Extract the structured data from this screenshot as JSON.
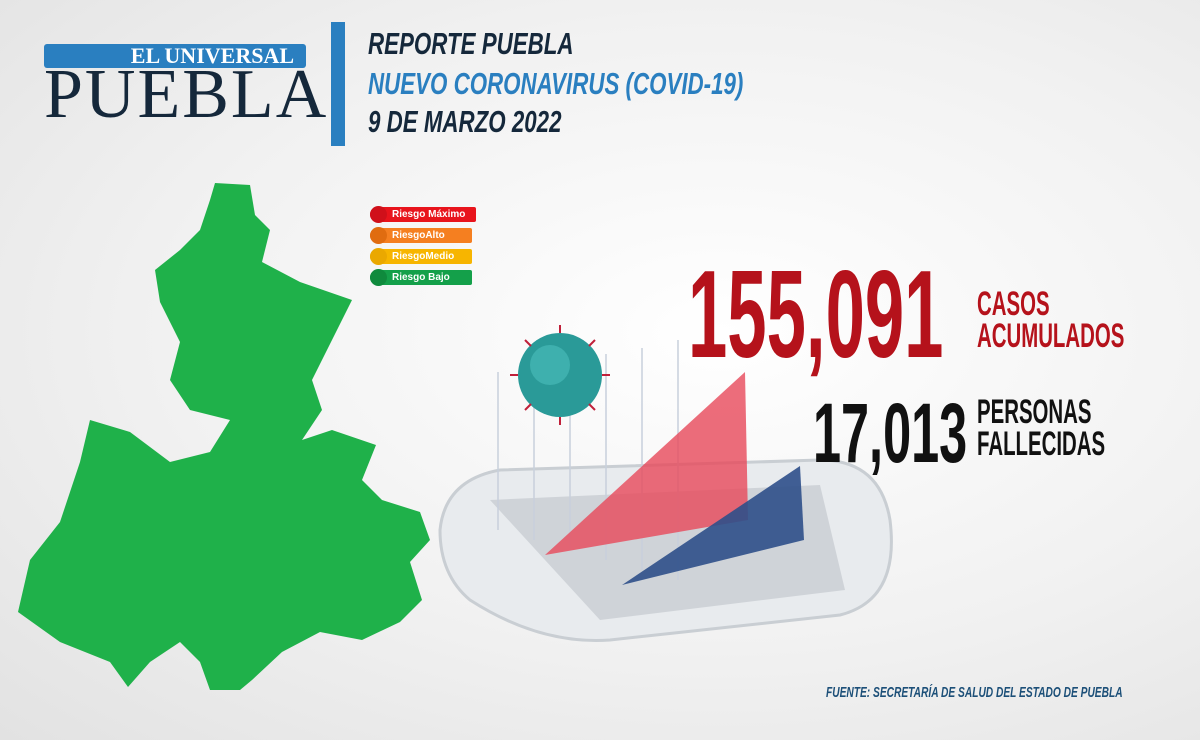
{
  "logo": {
    "band": "EL UNIVERSAL",
    "main": "PUEBLA"
  },
  "header": {
    "line1": "REPORTE PUEBLA",
    "line2": "NUEVO CORONAVIRUS (COVID-19)",
    "line3": "9 DE MARZO 2022"
  },
  "legend": [
    {
      "label": "Riesgo Máximo",
      "color": "#e8141c"
    },
    {
      "label": "RiesgoAlto",
      "color": "#f57f20"
    },
    {
      "label": "RiesgoMedio",
      "color": "#f7b500"
    },
    {
      "label": "Riesgo Bajo",
      "color": "#14a04a"
    }
  ],
  "map": {
    "risk_level": "Riesgo Bajo",
    "color": "#1fb14a"
  },
  "stats": {
    "cases": {
      "value": "155,091",
      "label1": "CASOS",
      "label2": "ACUMULADOS",
      "color": "#b5121b"
    },
    "deaths": {
      "value": "17,013",
      "label1": "PERSONAS",
      "label2": "FALLECIDAS",
      "color": "#111111"
    }
  },
  "source": {
    "prefix": "FUENTE:",
    "text": "SECRETARÍA DE SALUD DEL ESTADO DE PUEBLA"
  }
}
